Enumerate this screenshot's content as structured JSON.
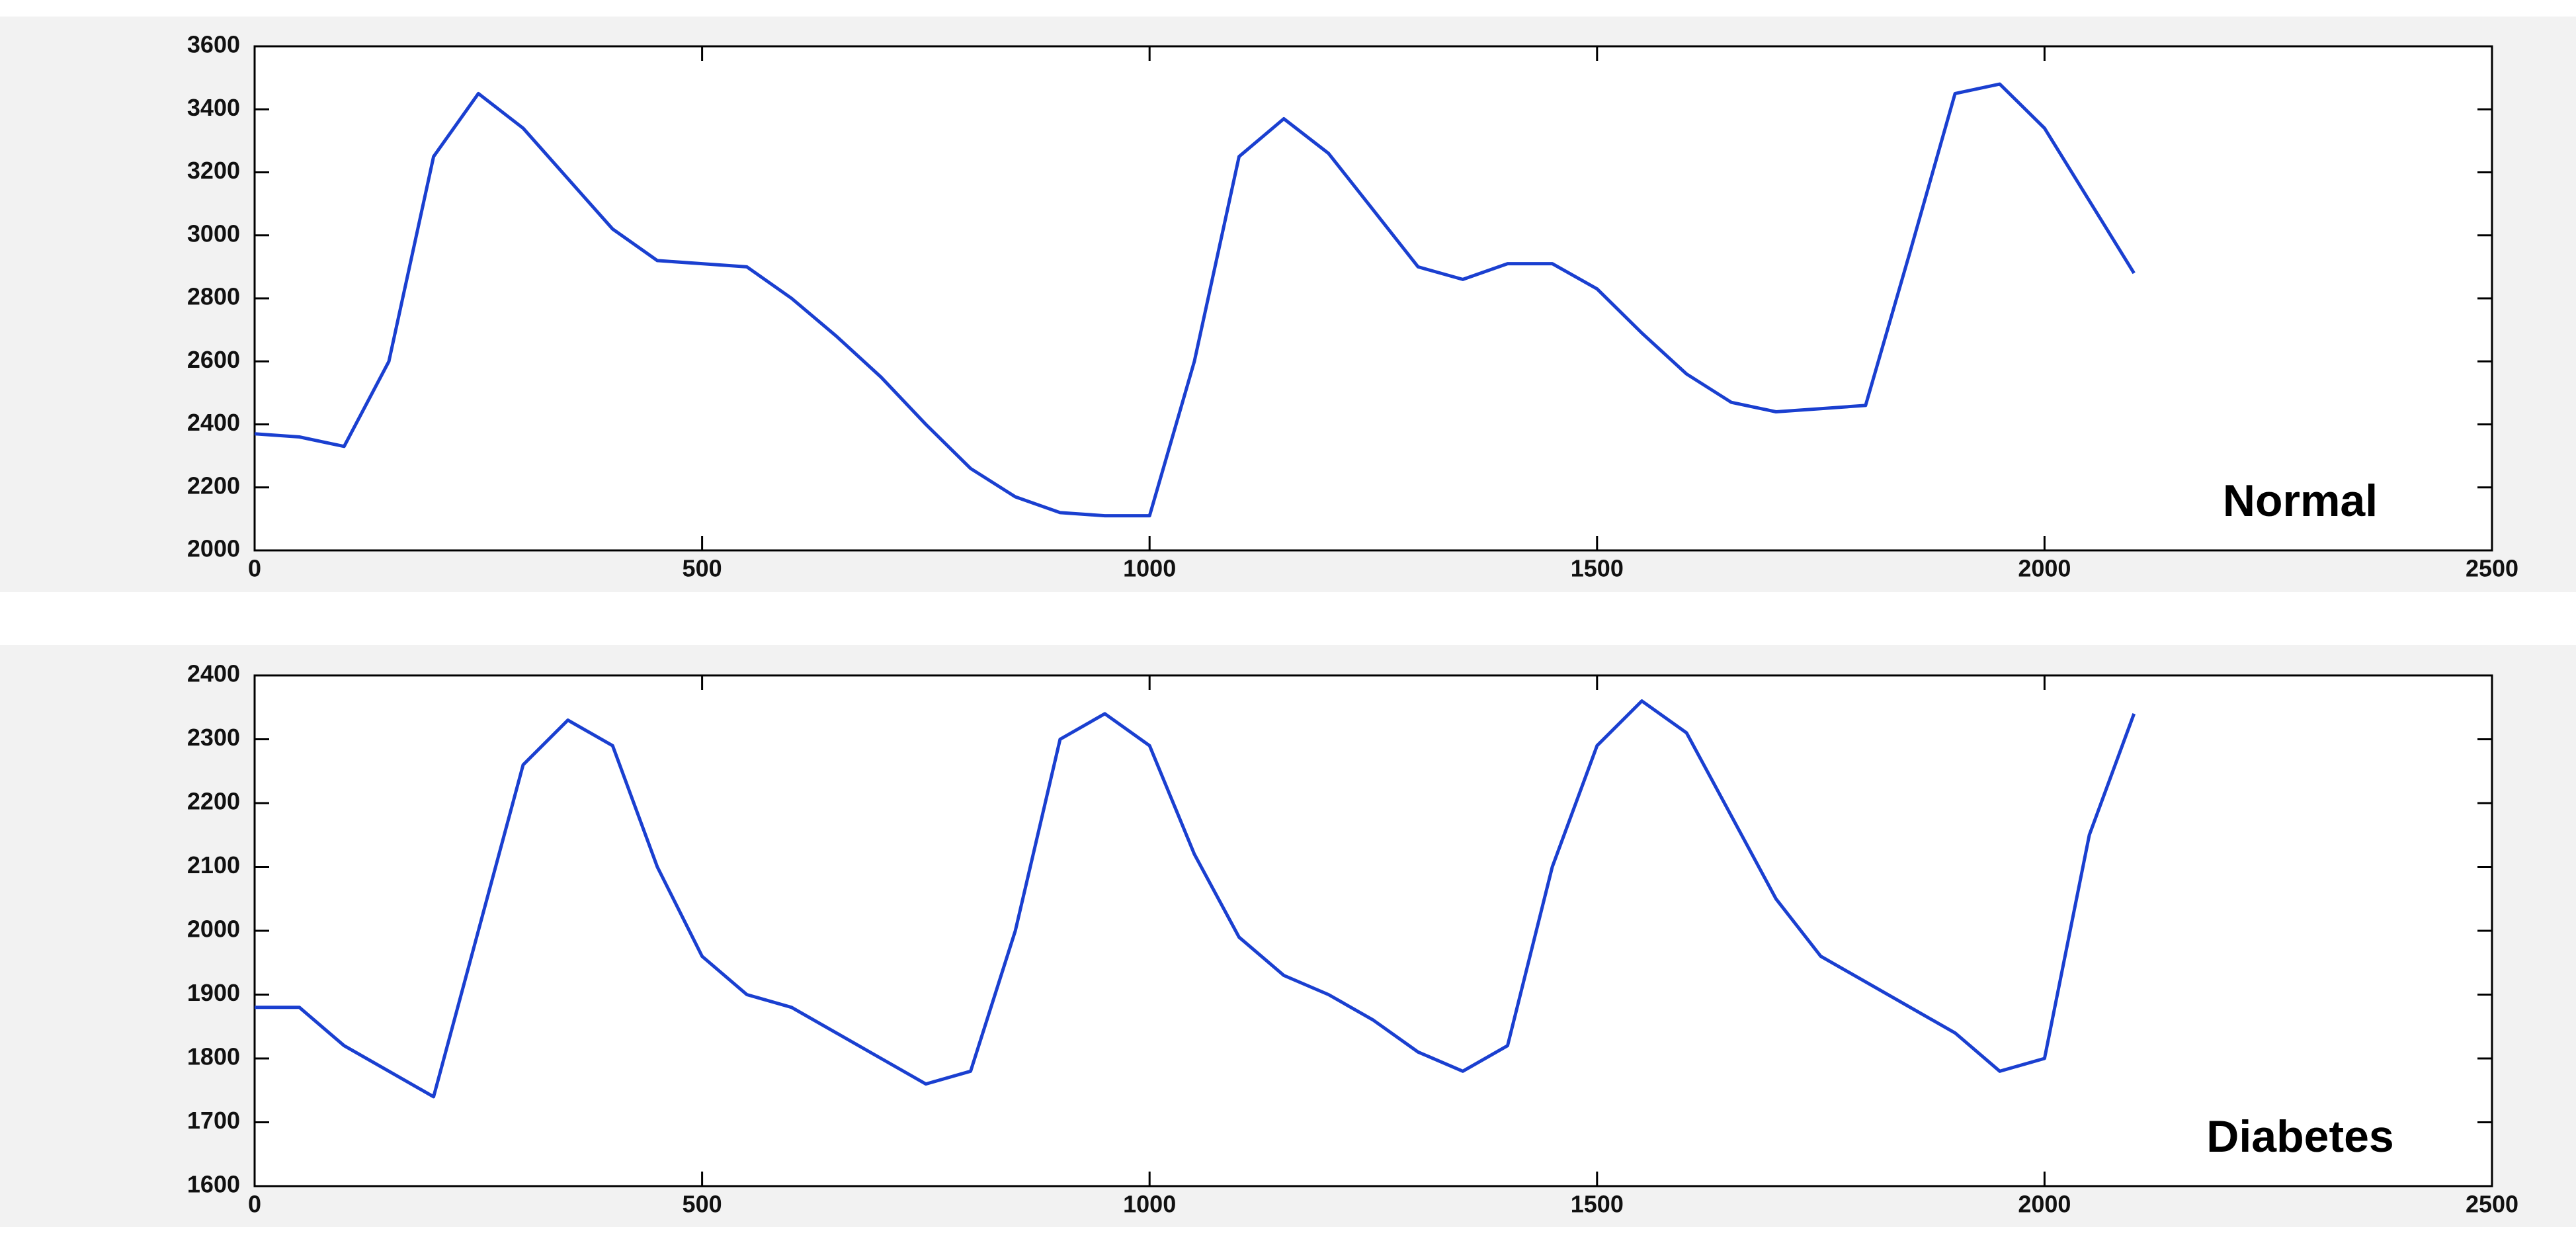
{
  "chart_data": [
    {
      "type": "line",
      "annotation": "Normal",
      "x": [
        0,
        50,
        100,
        150,
        200,
        250,
        300,
        350,
        400,
        450,
        500,
        550,
        600,
        650,
        700,
        750,
        800,
        850,
        900,
        950,
        1000,
        1050,
        1100,
        1150,
        1200,
        1250,
        1300,
        1350,
        1400,
        1450,
        1500,
        1550,
        1600,
        1650,
        1700,
        1750,
        1800,
        1850,
        1900,
        1950,
        2000,
        2050,
        2100
      ],
      "series": [
        {
          "color": "#1a3fd0",
          "values": [
            2370,
            2360,
            2330,
            2600,
            3250,
            3450,
            3340,
            3180,
            3020,
            2920,
            2910,
            2900,
            2800,
            2680,
            2550,
            2400,
            2260,
            2170,
            2120,
            2110,
            2110,
            2600,
            3250,
            3370,
            3260,
            3080,
            2900,
            2860,
            2910,
            2910,
            2830,
            2690,
            2560,
            2470,
            2440,
            2450,
            2460,
            2950,
            3450,
            3480,
            3340,
            3110,
            2880
          ]
        }
      ],
      "xlim": [
        0,
        2500
      ],
      "xticks": [
        0,
        500,
        1000,
        1500,
        2000,
        2500
      ],
      "ylim": [
        2000,
        3600
      ],
      "yticks": [
        2000,
        2200,
        2400,
        2600,
        2800,
        3000,
        3200,
        3400,
        3600
      ]
    },
    {
      "type": "line",
      "annotation": "Diabetes",
      "x": [
        0,
        50,
        100,
        150,
        200,
        250,
        300,
        350,
        400,
        450,
        500,
        550,
        600,
        650,
        700,
        750,
        800,
        850,
        900,
        950,
        1000,
        1050,
        1100,
        1150,
        1200,
        1250,
        1300,
        1350,
        1400,
        1450,
        1500,
        1550,
        1600,
        1650,
        1700,
        1750,
        1800,
        1850,
        1900,
        1950,
        2000,
        2050,
        2100
      ],
      "series": [
        {
          "color": "#1a3fd0",
          "values": [
            1880,
            1880,
            1820,
            1780,
            1740,
            2000,
            2260,
            2330,
            2290,
            2100,
            1960,
            1900,
            1880,
            1840,
            1800,
            1760,
            1780,
            2000,
            2300,
            2340,
            2290,
            2120,
            1990,
            1930,
            1900,
            1860,
            1810,
            1780,
            1820,
            2100,
            2290,
            2360,
            2310,
            2180,
            2050,
            1960,
            1920,
            1880,
            1840,
            1780,
            1800,
            2150,
            2340
          ]
        }
      ],
      "xlim": [
        0,
        2500
      ],
      "xticks": [
        0,
        500,
        1000,
        1500,
        2000,
        2500
      ],
      "ylim": [
        1600,
        2400
      ],
      "yticks": [
        1600,
        1700,
        1800,
        1900,
        2000,
        2100,
        2200,
        2300,
        2400
      ]
    }
  ]
}
